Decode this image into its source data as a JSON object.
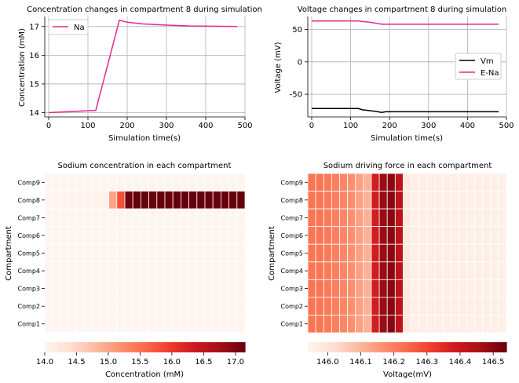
{
  "chart_data": [
    {
      "type": "line",
      "title": "Concentration changes in compartment 8 during simulation",
      "xlabel": "Simulation time(s)",
      "ylabel": "Concentration (mM)",
      "xlim": [
        -10,
        500
      ],
      "ylim": [
        13.85,
        17.35
      ],
      "xticks": [
        0,
        100,
        200,
        300,
        400,
        500
      ],
      "yticks": [
        14,
        15,
        16,
        17
      ],
      "grid": true,
      "legend": "top-left",
      "series": [
        {
          "name": "Na",
          "color": "#e7298a",
          "x": [
            0,
            120,
            180,
            200,
            240,
            300,
            360,
            420,
            480
          ],
          "y": [
            14.0,
            14.08,
            17.22,
            17.15,
            17.09,
            17.05,
            17.02,
            17.01,
            17.0
          ]
        }
      ]
    },
    {
      "type": "line",
      "title": "Voltage changes in compartment 8 during simulation",
      "xlabel": "Simulation time(s)",
      "ylabel": "Voltage (mV)",
      "xlim": [
        -10,
        500
      ],
      "ylim": [
        -85,
        70
      ],
      "xticks": [
        0,
        100,
        200,
        300,
        400,
        500
      ],
      "yticks": [
        -50,
        0,
        50
      ],
      "grid": true,
      "legend": "center-right",
      "series": [
        {
          "name": "Vm",
          "color": "#000000",
          "x": [
            0,
            120,
            130,
            160,
            180,
            190,
            240,
            300,
            480
          ],
          "y": [
            -72,
            -72,
            -74,
            -76,
            -78,
            -77,
            -77,
            -77,
            -77
          ]
        },
        {
          "name": "E-Na",
          "color": "#e7298a",
          "x": [
            0,
            120,
            150,
            180,
            200,
            300,
            480
          ],
          "y": [
            63,
            63,
            61,
            58,
            58,
            58,
            58
          ]
        }
      ]
    },
    {
      "type": "heatmap",
      "title": "Sodium concentration in each compartment",
      "ylabel": "Compartment",
      "rows": [
        "Comp9",
        "Comp8",
        "Comp7",
        "Comp6",
        "Comp5",
        "Comp4",
        "Comp3",
        "Comp2",
        "Comp1"
      ],
      "n_cols": 25,
      "colorbar": {
        "label": "Concentration (mM)",
        "ticks": [
          "14.0",
          "14.5",
          "15.0",
          "15.5",
          "16.0",
          "16.5",
          "17.0"
        ],
        "vmin": 14.0,
        "vmax": 17.15,
        "cmap": "Reds"
      },
      "values": [
        [
          14.0,
          14.0,
          14.0,
          14.0,
          14.0,
          14.0,
          14.0,
          14.0,
          14.0,
          14.0,
          14.0,
          14.0,
          14.0,
          14.0,
          14.0,
          14.0,
          14.0,
          14.0,
          14.0,
          14.0,
          14.0,
          14.0,
          14.0,
          14.0,
          14.0
        ],
        [
          14.0,
          14.01,
          14.02,
          14.03,
          14.04,
          14.05,
          14.06,
          14.07,
          15.0,
          15.8,
          17.1,
          17.15,
          17.15,
          17.15,
          17.15,
          17.15,
          17.15,
          17.15,
          17.15,
          17.15,
          17.15,
          17.15,
          17.15,
          17.15,
          17.15
        ],
        [
          14.0,
          14.0,
          14.0,
          14.0,
          14.0,
          14.0,
          14.0,
          14.0,
          14.0,
          14.0,
          14.0,
          14.0,
          14.0,
          14.0,
          14.0,
          14.0,
          14.0,
          14.0,
          14.0,
          14.0,
          14.0,
          14.0,
          14.0,
          14.0,
          14.0
        ],
        [
          14.0,
          14.0,
          14.0,
          14.0,
          14.0,
          14.0,
          14.0,
          14.0,
          14.0,
          14.0,
          14.0,
          14.0,
          14.0,
          14.0,
          14.0,
          14.0,
          14.0,
          14.0,
          14.0,
          14.0,
          14.0,
          14.0,
          14.0,
          14.0,
          14.0
        ],
        [
          14.0,
          14.0,
          14.0,
          14.0,
          14.0,
          14.0,
          14.0,
          14.0,
          14.0,
          14.0,
          14.0,
          14.0,
          14.0,
          14.0,
          14.0,
          14.0,
          14.0,
          14.0,
          14.0,
          14.0,
          14.0,
          14.0,
          14.0,
          14.0,
          14.0
        ],
        [
          14.0,
          14.0,
          14.0,
          14.0,
          14.0,
          14.0,
          14.0,
          14.0,
          14.0,
          14.0,
          14.0,
          14.0,
          14.0,
          14.0,
          14.0,
          14.0,
          14.0,
          14.0,
          14.0,
          14.0,
          14.0,
          14.0,
          14.0,
          14.0,
          14.0
        ],
        [
          14.0,
          14.0,
          14.0,
          14.0,
          14.0,
          14.0,
          14.0,
          14.0,
          14.0,
          14.0,
          14.0,
          14.0,
          14.0,
          14.0,
          14.0,
          14.0,
          14.0,
          14.0,
          14.0,
          14.0,
          14.0,
          14.0,
          14.0,
          14.0,
          14.0
        ],
        [
          14.0,
          14.0,
          14.0,
          14.0,
          14.0,
          14.0,
          14.0,
          14.0,
          14.0,
          14.0,
          14.0,
          14.0,
          14.0,
          14.0,
          14.0,
          14.0,
          14.0,
          14.0,
          14.0,
          14.0,
          14.0,
          14.0,
          14.0,
          14.0,
          14.0
        ],
        [
          14.0,
          14.0,
          14.0,
          14.0,
          14.0,
          14.0,
          14.0,
          14.0,
          14.0,
          14.0,
          14.0,
          14.0,
          14.0,
          14.0,
          14.0,
          14.0,
          14.0,
          14.0,
          14.0,
          14.0,
          14.0,
          14.0,
          14.0,
          14.0,
          14.0
        ]
      ]
    },
    {
      "type": "heatmap",
      "title": "Sodium driving force in each compartment",
      "ylabel": "Compartment",
      "rows": [
        "Comp9",
        "Comp8",
        "Comp7",
        "Comp6",
        "Comp5",
        "Comp4",
        "Comp3",
        "Comp2",
        "Comp1"
      ],
      "n_cols": 25,
      "colorbar": {
        "label": "Voltage(mV)",
        "ticks": [
          "146.0",
          "146.1",
          "146.2",
          "146.3",
          "146.4",
          "146.5"
        ],
        "vmin": 145.94,
        "vmax": 146.54,
        "cmap": "Reds"
      },
      "col_profile": [
        146.22,
        146.22,
        146.21,
        146.2,
        146.19,
        146.17,
        146.14,
        146.11,
        146.38,
        146.48,
        146.5,
        146.42,
        145.98,
        145.96,
        145.96,
        145.96,
        145.96,
        145.96,
        145.96,
        145.96,
        145.96,
        145.96,
        145.96,
        145.96,
        145.96
      ]
    }
  ]
}
